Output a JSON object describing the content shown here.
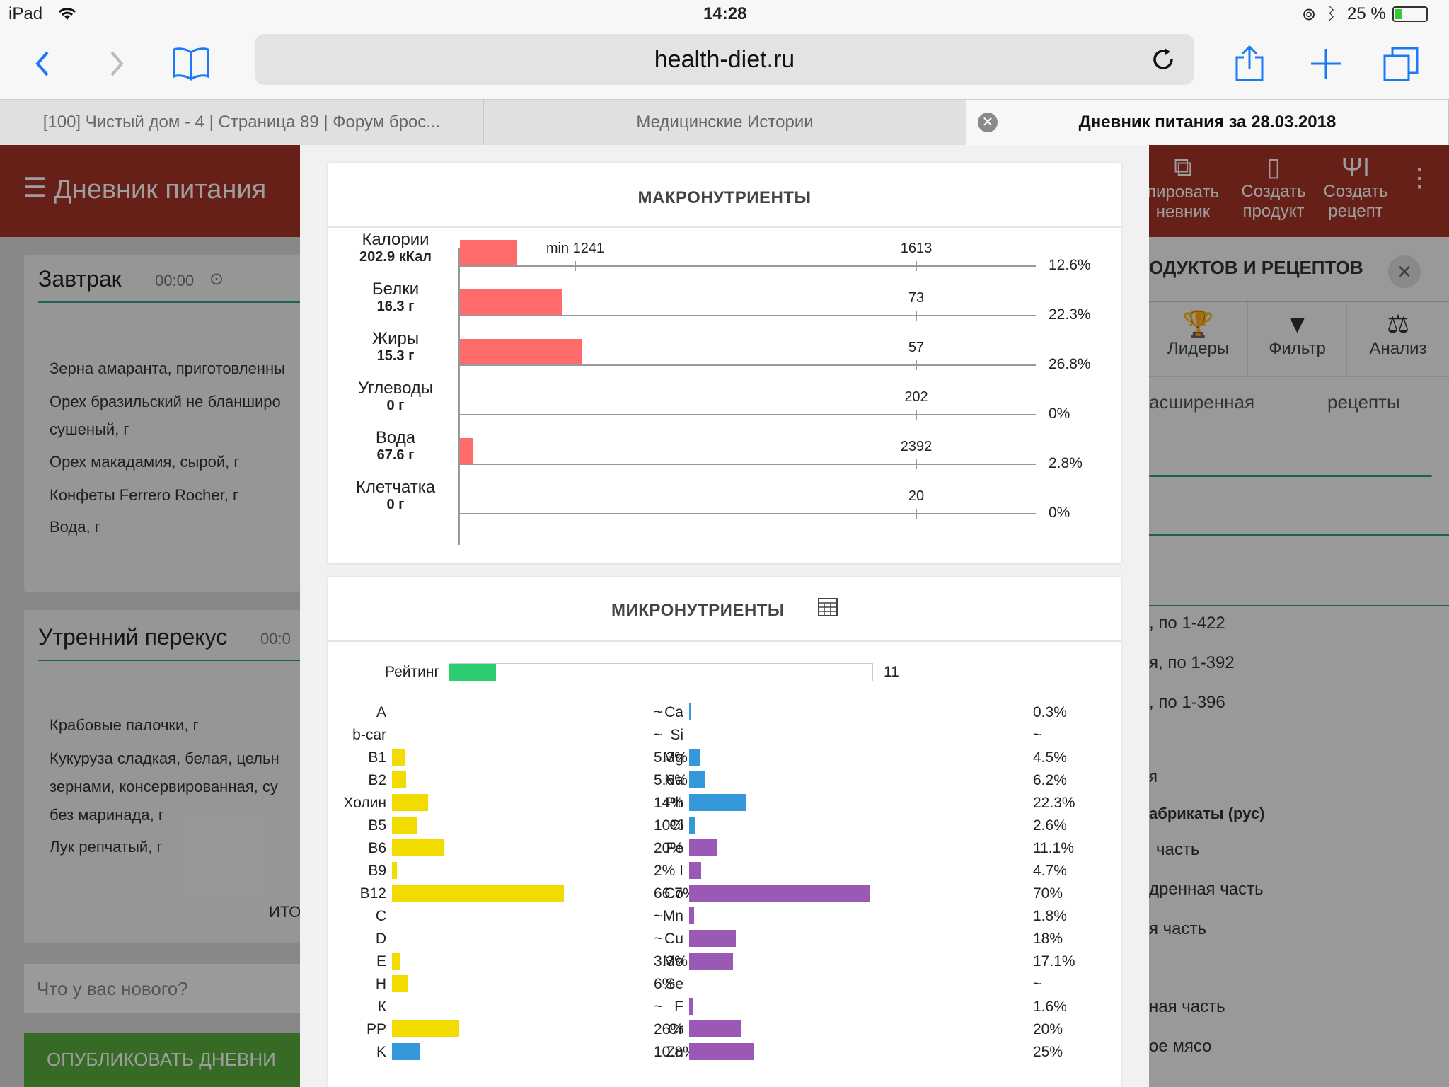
{
  "status": {
    "device": "iPad",
    "time": "14:28",
    "battery": "25 %"
  },
  "browser": {
    "url": "health-diet.ru"
  },
  "tabs": [
    {
      "label": "[100] Чистый дом - 4 | Страница 89 | Форум брос..."
    },
    {
      "label": "Медицинские Истории"
    },
    {
      "label": "Дневник питания за 28.03.2018"
    }
  ],
  "app": {
    "title": "Дневник питания",
    "actions": [
      {
        "label": "пировать\nневник"
      },
      {
        "label": "Создать\nпродукт"
      },
      {
        "label": "Создать\nрецепт"
      }
    ]
  },
  "left": {
    "breakfast": {
      "title": "Завтрак",
      "time": "00:00",
      "items": [
        "Зерна амаранта, приготовленны",
        "Орех бразильский не бланширо",
        "сушеный, г",
        "Орех макадамия, сырой, г",
        "Конфеты Ferrero Rocher, г",
        "Вода, г"
      ]
    },
    "snack": {
      "title": "Утренний перекус",
      "time": "00:0",
      "items": [
        "Крабовые палочки, г",
        "Кукуруза сладкая, белая, цельн",
        "зернами, консервированная, су",
        "без маринада, г",
        "Лук репчатый, г"
      ]
    },
    "total": "ИТО",
    "news_placeholder": "Что у вас нового?",
    "publish": "ОПУБЛИКОВАТЬ ДНЕВНИ"
  },
  "right": {
    "header": "ОДУКТОВ И РЕЦЕПТОВ",
    "icons": [
      {
        "label": "Лидеры"
      },
      {
        "label": "Фильтр"
      },
      {
        "label": "Анализ"
      }
    ],
    "tabs": [
      "асширенная",
      "рецепты"
    ],
    "rows": [
      ", по 1-422",
      "я, по 1-392",
      ", по 1-396",
      "я",
      "абрикаты (рус)",
      "часть",
      "дренная часть",
      "я часть",
      "ная часть",
      "ое мясо"
    ]
  },
  "macros": {
    "title": "МАКРОНУТРИЕНТЫ",
    "rows": [
      {
        "name": "Калории",
        "value": "202.9 кКал",
        "pct": "12.6%",
        "frac": 0.126,
        "target": "1613",
        "min": "min 1241",
        "minfrac": 0.77
      },
      {
        "name": "Белки",
        "value": "16.3 г",
        "pct": "22.3%",
        "frac": 0.223,
        "target": "73"
      },
      {
        "name": "Жиры",
        "value": "15.3 г",
        "pct": "26.8%",
        "frac": 0.268,
        "target": "57"
      },
      {
        "name": "Углеводы",
        "value": "0 г",
        "pct": "0%",
        "frac": 0,
        "target": "202"
      },
      {
        "name": "Вода",
        "value": "67.6 г",
        "pct": "2.8%",
        "frac": 0.028,
        "target": "2392"
      },
      {
        "name": "Клетчатка",
        "value": "0 г",
        "pct": "0%",
        "frac": 0,
        "target": "20"
      }
    ]
  },
  "micros": {
    "title": "МИКРОНУТРИЕНТЫ",
    "rating_label": "Рейтинг",
    "rating_value": "11",
    "rating_frac": 0.11,
    "colors": {
      "vitamin": "#f2dc00",
      "mineral_blue": "#3498db",
      "mineral_purple": "#9b59b6",
      "rating": "#2ecc71",
      "macro": "#ff6b6b"
    },
    "vitamins": [
      {
        "name": "A",
        "pct": "~",
        "frac": 0
      },
      {
        "name": "b-car",
        "pct": "~",
        "frac": 0
      },
      {
        "name": "B1",
        "pct": "5.3%",
        "frac": 0.053
      },
      {
        "name": "B2",
        "pct": "5.6%",
        "frac": 0.056
      },
      {
        "name": "Холин",
        "pct": "14%",
        "frac": 0.14
      },
      {
        "name": "B5",
        "pct": "10%",
        "frac": 0.1
      },
      {
        "name": "B6",
        "pct": "20%",
        "frac": 0.2
      },
      {
        "name": "B9",
        "pct": "2%",
        "frac": 0.02
      },
      {
        "name": "B12",
        "pct": "66.7%",
        "frac": 0.667
      },
      {
        "name": "C",
        "pct": "~",
        "frac": 0
      },
      {
        "name": "D",
        "pct": "~",
        "frac": 0
      },
      {
        "name": "E",
        "pct": "3.3%",
        "frac": 0.033
      },
      {
        "name": "H",
        "pct": "6%",
        "frac": 0.06
      },
      {
        "name": "К",
        "pct": "~",
        "frac": 0
      },
      {
        "name": "PP",
        "pct": "26%",
        "frac": 0.26
      },
      {
        "name": "K",
        "pct": "10.8%",
        "frac": 0.108,
        "color": "blue"
      }
    ],
    "minerals": [
      {
        "name": "Ca",
        "pct": "0.3%",
        "frac": 0.003,
        "color": "blue"
      },
      {
        "name": "Si",
        "pct": "~",
        "frac": 0,
        "color": "blue"
      },
      {
        "name": "Mg",
        "pct": "4.5%",
        "frac": 0.045,
        "color": "blue"
      },
      {
        "name": "Na",
        "pct": "6.2%",
        "frac": 0.062,
        "color": "blue"
      },
      {
        "name": "Ph",
        "pct": "22.3%",
        "frac": 0.223,
        "color": "blue"
      },
      {
        "name": "Cl",
        "pct": "2.6%",
        "frac": 0.026,
        "color": "blue"
      },
      {
        "name": "Fe",
        "pct": "11.1%",
        "frac": 0.111,
        "color": "purple"
      },
      {
        "name": "I",
        "pct": "4.7%",
        "frac": 0.047,
        "color": "purple"
      },
      {
        "name": "Co",
        "pct": "70%",
        "frac": 0.7,
        "color": "purple"
      },
      {
        "name": "Mn",
        "pct": "1.8%",
        "frac": 0.018,
        "color": "purple"
      },
      {
        "name": "Cu",
        "pct": "18%",
        "frac": 0.18,
        "color": "purple"
      },
      {
        "name": "Mo",
        "pct": "17.1%",
        "frac": 0.171,
        "color": "purple"
      },
      {
        "name": "Se",
        "pct": "~",
        "frac": 0,
        "color": "purple"
      },
      {
        "name": "F",
        "pct": "1.6%",
        "frac": 0.016,
        "color": "purple"
      },
      {
        "name": "Cr",
        "pct": "20%",
        "frac": 0.2,
        "color": "purple"
      },
      {
        "name": "Zn",
        "pct": "25%",
        "frac": 0.25,
        "color": "purple"
      }
    ]
  }
}
